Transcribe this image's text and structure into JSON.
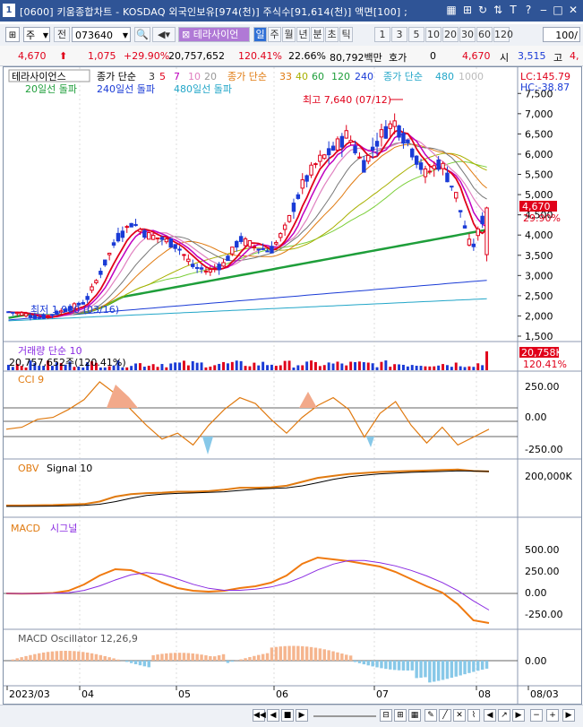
{
  "window": {
    "number": "1",
    "title": "[0600] 키움종합차트 - KOSDAQ 외국인보유[974(천)] 주식수[91,614(천)] 액면[100] ;",
    "icons": [
      "window-menu-icon",
      "chart-icon",
      "link-icon",
      "sort-icon",
      "text-icon",
      "help-icon",
      "minimize-icon",
      "maximize-icon",
      "close-icon"
    ]
  },
  "toolbar": {
    "period_select": "주",
    "range_btn": "전",
    "code": "073640",
    "stock_name": "테라사이언",
    "period_tabs": [
      "일",
      "주",
      "월",
      "년",
      "분",
      "초",
      "틱"
    ],
    "active_period": "일",
    "intervals": [
      "1",
      "3",
      "5",
      "10",
      "20",
      "30",
      "60",
      "120"
    ],
    "count_value": "100/"
  },
  "quote": {
    "price": "4,670",
    "change": "1,075",
    "change_pct": "+29.90%",
    "volume": "20,757,652",
    "vol_ratio": "120.41%",
    "turnover": "22.66%",
    "amount": "80,792백만",
    "hoga_label": "호가",
    "hoga_value": "0",
    "last_price": "4,670",
    "open_label": "시",
    "open_value": "3,515",
    "high_label": "고",
    "high_value": "4,"
  },
  "price_panel": {
    "legend_stock": "테라사이언스",
    "legend_ma_label": "종가 단순",
    "legend_ma_values": [
      "3",
      "5",
      "7",
      "10",
      "20"
    ],
    "legend_ma2_label": "종가 단순",
    "legend_ma2_values": [
      "33",
      "40",
      "60",
      "120",
      "240"
    ],
    "legend_ma3_label": "종가 단순",
    "legend_ma3_values": [
      "480",
      "1000"
    ],
    "legend_breakout": [
      "20일선 돌파",
      "240일선 돌파",
      "480일선 돌파"
    ],
    "lc": "LC:145.79",
    "hc": "HC:-38.87",
    "max_note": "최고 7,640 (07/12)",
    "min_note": "최저 1,900 (03/16)",
    "price_badge": "4,670",
    "pct_badge": "29.90%",
    "y_ticks": [
      "7,500",
      "7,000",
      "6,500",
      "6,000",
      "5,500",
      "5,000",
      "4,500",
      "4,000",
      "3,500",
      "3,000",
      "2,500",
      "2,000",
      "1,500"
    ]
  },
  "volume_panel": {
    "title": "거래량 단순 10",
    "value_text": "20,757,652주(120.41%)",
    "badge": "20,758K",
    "badge_pct": "120.41%"
  },
  "cci_panel": {
    "title": "CCI 9",
    "y_ticks": [
      "250.00",
      "0.00",
      "-250.00"
    ]
  },
  "obv_panel": {
    "title": "OBV",
    "signal": "Signal 10",
    "y_ticks": [
      "200,000K"
    ]
  },
  "macd_panel": {
    "title": "MACD",
    "signal": "시그널",
    "y_ticks": [
      "500.00",
      "250.00",
      "0.00",
      "-250.00"
    ]
  },
  "osc_panel": {
    "title": "MACD Oscillator 12,26,9",
    "y_ticks": [
      "0.00"
    ]
  },
  "x_labels": [
    "2023/03",
    "04",
    "05",
    "06",
    "07",
    "08",
    "08/03"
  ],
  "colors": {
    "up": "#e0001a",
    "down": "#1a3bd6",
    "accent": "#2f5496",
    "ma240": "#1e9e3a",
    "macd": "#f07a10"
  },
  "chart_data": {
    "type": "candlestick",
    "title": "테라사이언스 일봉",
    "x": [
      "2023/03",
      "04",
      "05",
      "06",
      "07",
      "08"
    ],
    "ylim": [
      1500,
      7750
    ],
    "points": {
      "high": {
        "date": "07/12",
        "value": 7640
      },
      "low": {
        "date": "03/16",
        "value": 1900
      },
      "last": {
        "value": 4670,
        "change_pct": 29.9
      }
    },
    "close_trend": [
      2100,
      2050,
      1950,
      2050,
      2200,
      2350,
      3100,
      3900,
      4300,
      4000,
      3900,
      3700,
      3200,
      3100,
      3300,
      3900,
      3700,
      3600,
      4200,
      5200,
      5800,
      6100,
      6500,
      5700,
      6400,
      6800,
      6200,
      5500,
      5800,
      5000,
      3600,
      4670
    ]
  }
}
